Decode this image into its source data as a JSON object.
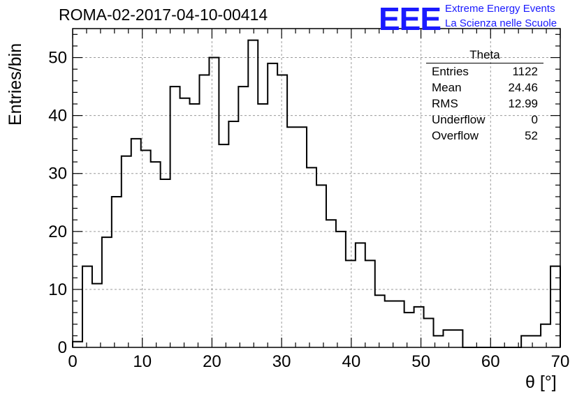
{
  "title": "ROMA-02-2017-04-10-00414",
  "logo": {
    "text": "EEE",
    "line1": "Extreme Energy Events",
    "line2": "La Scienza nelle Scuole"
  },
  "stats": {
    "title": "Theta",
    "rows": [
      {
        "label": "Entries",
        "value": "1122"
      },
      {
        "label": "Mean",
        "value": "24.46"
      },
      {
        "label": "RMS",
        "value": "12.99"
      },
      {
        "label": "Underflow",
        "value": "0"
      },
      {
        "label": "Overflow",
        "value": "52"
      }
    ]
  },
  "chart_data": {
    "type": "bar",
    "title": "ROMA-02-2017-04-10-00414",
    "xlabel": "θ [°]",
    "ylabel": "Entries/bin",
    "xlim": [
      0,
      70
    ],
    "ylim": [
      0,
      55
    ],
    "grid": true,
    "legend": "top-right",
    "bin_width": 1.4,
    "xticks": [
      0,
      10,
      20,
      30,
      40,
      50,
      60,
      70
    ],
    "yticks": [
      0,
      10,
      20,
      30,
      40,
      50
    ],
    "values": [
      1,
      14,
      11,
      19,
      26,
      33,
      36,
      34,
      32,
      29,
      45,
      43,
      42,
      47,
      50,
      35,
      39,
      45,
      53,
      42,
      49,
      47,
      38,
      38,
      31,
      28,
      22,
      20,
      15,
      18,
      15,
      9,
      8,
      8,
      6,
      7,
      5,
      2,
      3,
      3,
      0,
      0,
      0,
      0,
      0,
      0,
      2,
      2,
      4,
      14
    ],
    "line_color": "#000000",
    "grid_color": "#9a9a9a"
  }
}
